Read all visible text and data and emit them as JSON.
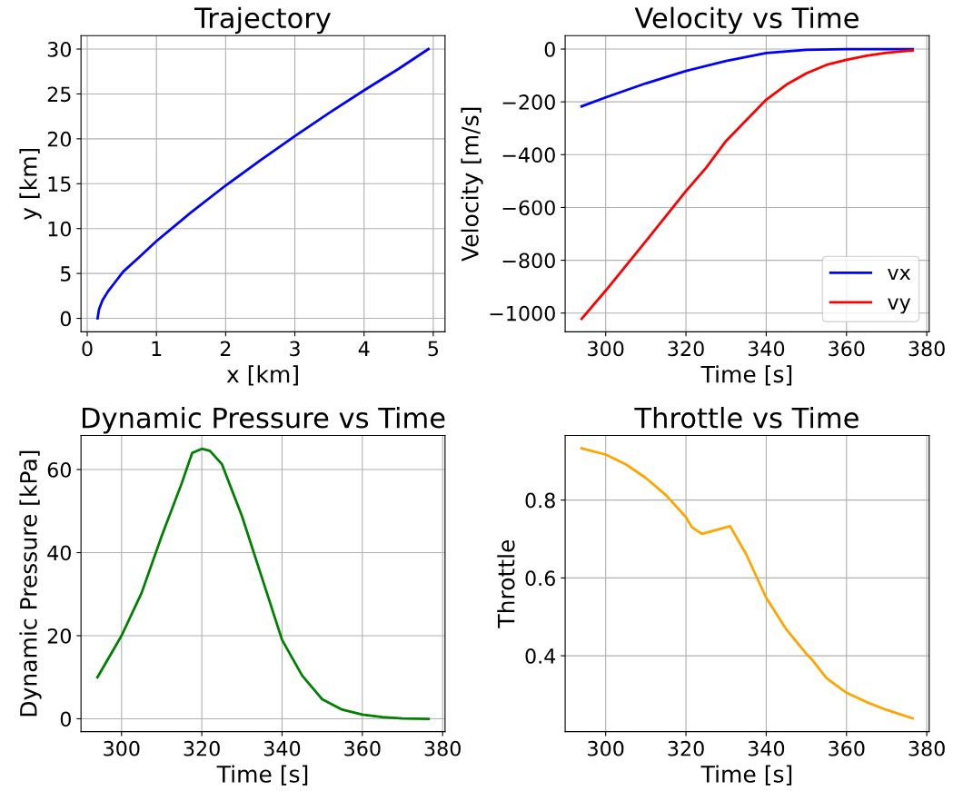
{
  "chart_data": [
    {
      "type": "line",
      "title": "Trajectory",
      "xlabel": "x [km]",
      "ylabel": "y [km]",
      "xlim": [
        -0.09,
        5.17
      ],
      "ylim": [
        -1.5,
        31.5
      ],
      "xticks": [
        0,
        1,
        2,
        3,
        4,
        5
      ],
      "yticks": [
        0,
        5,
        10,
        15,
        20,
        25,
        30
      ],
      "grid": true,
      "legend": false,
      "series": [
        {
          "color": "#0000ff",
          "x": [
            0.15,
            0.17,
            0.22,
            0.3,
            0.4,
            0.52,
            0.75,
            1.0,
            1.5,
            2.0,
            2.5,
            3.0,
            3.5,
            4.0,
            4.5,
            4.93
          ],
          "values": [
            0,
            1,
            2,
            3,
            4,
            5.2,
            6.8,
            8.6,
            11.8,
            14.8,
            17.6,
            20.3,
            22.9,
            25.4,
            27.8,
            30
          ]
        }
      ]
    },
    {
      "type": "line",
      "title": "Velocity vs Time",
      "xlabel": "Time [s]",
      "ylabel": "Velocity [m/s]",
      "xlim": [
        289.9,
        380.6
      ],
      "ylim": [
        -1071,
        51
      ],
      "xticks": [
        300,
        320,
        340,
        360,
        380
      ],
      "yticks": [
        {
          "value": -1000,
          "label": "−1000"
        },
        {
          "value": -800,
          "label": "−800"
        },
        {
          "value": -600,
          "label": "−600"
        },
        {
          "value": -400,
          "label": "−400"
        },
        {
          "value": -200,
          "label": "−200"
        },
        0
      ],
      "grid": true,
      "legend": "bottom right",
      "series": [
        {
          "name": "vx",
          "color": "#0000ff",
          "x": [
            294,
            300,
            310,
            320,
            330,
            340,
            350,
            360,
            376.5
          ],
          "values": [
            -217,
            -183,
            -130,
            -83,
            -45,
            -15,
            -3,
            0,
            0
          ]
        },
        {
          "name": "vy",
          "color": "#ff0000",
          "x": [
            294,
            300,
            310,
            320,
            325,
            330,
            335,
            340,
            345,
            350,
            355,
            360,
            365,
            370,
            376.5
          ],
          "values": [
            -1022,
            -915,
            -728,
            -538,
            -450,
            -348,
            -270,
            -192,
            -135,
            -92,
            -60,
            -41,
            -25,
            -14,
            -5
          ]
        }
      ]
    },
    {
      "type": "line",
      "title": "Dynamic Pressure vs Time",
      "xlabel": "Time [s]",
      "ylabel": "Dynamic Pressure [kPa]",
      "xlim": [
        289.9,
        380.6
      ],
      "ylim": [
        -3.1,
        68.2
      ],
      "xticks": [
        300,
        320,
        340,
        360,
        380
      ],
      "yticks": [
        0,
        20,
        40,
        60
      ],
      "grid": true,
      "legend": false,
      "series": [
        {
          "color": "#008000",
          "x": [
            294,
            300,
            305,
            310,
            315,
            317.6,
            320,
            322,
            325,
            330,
            335,
            340,
            345,
            350,
            355,
            360,
            365,
            370,
            376.5
          ],
          "values": [
            10.0,
            20,
            30.3,
            44,
            56.7,
            64,
            65,
            64.5,
            61.3,
            48.8,
            33.9,
            19,
            10.4,
            4.7,
            2.2,
            1.0,
            0.4,
            0.1,
            0
          ]
        }
      ]
    },
    {
      "type": "line",
      "title": "Throttle vs Time",
      "xlabel": "Time [s]",
      "ylabel": "Throttle",
      "xlim": [
        289.9,
        380.6
      ],
      "ylim": [
        0.205,
        0.966
      ],
      "xticks": [
        300,
        320,
        340,
        360,
        380
      ],
      "yticks": [
        0.4,
        0.6,
        0.8
      ],
      "grid": true,
      "legend": false,
      "series": [
        {
          "color": "#ffa500",
          "x": [
            294,
            300,
            305,
            310,
            315,
            320,
            321.5,
            324,
            331,
            335,
            340,
            345,
            350,
            351.5,
            355,
            360,
            365,
            370,
            376.5
          ],
          "values": [
            0.933,
            0.917,
            0.892,
            0.857,
            0.813,
            0.756,
            0.73,
            0.713,
            0.733,
            0.661,
            0.549,
            0.468,
            0.405,
            0.389,
            0.343,
            0.305,
            0.281,
            0.261,
            0.239
          ]
        }
      ]
    }
  ]
}
